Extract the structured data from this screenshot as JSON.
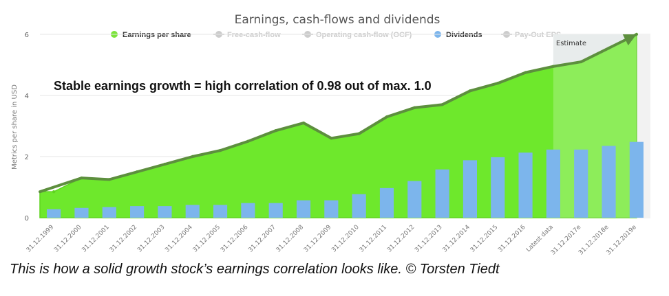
{
  "chart_data": {
    "type": "area",
    "title": "Earnings, cash-flows and dividends",
    "ylabel": "Metrics per share in USD",
    "ylim": [
      0,
      6
    ],
    "y_ticks": [
      "0",
      "2",
      "4",
      "6"
    ],
    "grid": true,
    "legend_position": "top",
    "categories": [
      "31.12.1999",
      "31.12.2000",
      "31.12.2001",
      "31.12.2002",
      "31.12.2003",
      "31.12.2004",
      "31.12.2005",
      "31.12.2006",
      "31.12.2007",
      "31.12.2008",
      "31.12.2009",
      "31.12.2010",
      "31.12.2011",
      "31.12.2012",
      "31.12.2013",
      "31.12.2014",
      "31.12.2015",
      "31.12.2016",
      "Latest data",
      "31.12.2017e",
      "31.12.2018e",
      "31.12.2019e"
    ],
    "legend": [
      {
        "name": "Earnings per share",
        "color": "#7be43a",
        "active": true
      },
      {
        "name": "Free-cash-flow",
        "color": "#cccccc",
        "active": false
      },
      {
        "name": "Operating cash-flow (OCF)",
        "color": "#cccccc",
        "active": false
      },
      {
        "name": "Dividends",
        "color": "#7cb5ec",
        "active": true
      },
      {
        "name": "Pay-Out EPS",
        "color": "#cccccc",
        "active": false
      }
    ],
    "series": [
      {
        "name": "Earnings per share",
        "type": "area",
        "color": "#6ee82c",
        "values": [
          0.85,
          1.3,
          1.25,
          1.5,
          1.75,
          2.0,
          2.2,
          2.5,
          2.85,
          3.1,
          2.6,
          2.75,
          3.3,
          3.6,
          3.7,
          4.15,
          4.4,
          4.75,
          4.95,
          5.1,
          5.55,
          6.0
        ]
      },
      {
        "name": "Dividends",
        "type": "bar",
        "color": "#7cb5ec",
        "values": [
          0.28,
          0.32,
          0.35,
          0.38,
          0.38,
          0.42,
          0.42,
          0.48,
          0.48,
          0.57,
          0.57,
          0.77,
          0.97,
          1.2,
          1.58,
          1.88,
          1.98,
          2.13,
          2.23,
          2.23,
          2.35,
          2.48
        ]
      }
    ],
    "estimate_band": {
      "label": "Estimate",
      "from_category": "Latest data",
      "to_category": "31.12.2019e"
    },
    "annotation": "Stable earnings growth = high correlation of 0.98 out of max. 1.0"
  },
  "caption": "This is how a solid growth stock’s earnings correlation looks like. © Torsten Tiedt"
}
